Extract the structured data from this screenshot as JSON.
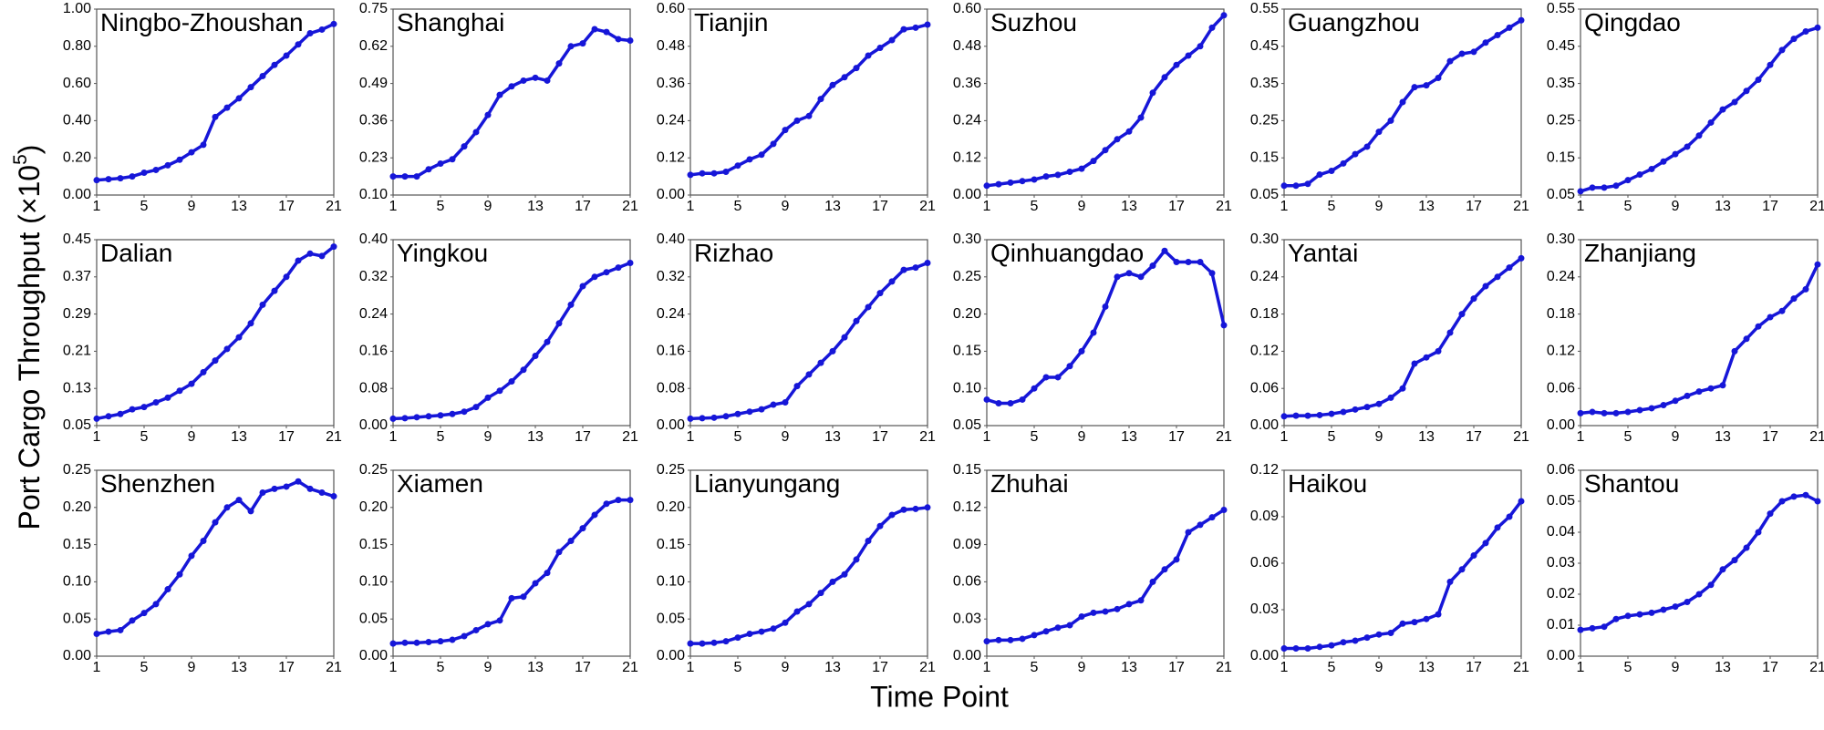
{
  "ylabel_parts": [
    "Port Cargo Throughput (×10",
    "5",
    ")"
  ],
  "xlabel": "Time Point",
  "chart_data": [
    {
      "type": "line",
      "title": "Ningbo-Zhoushan",
      "color": "#1616d8",
      "x": [
        1,
        2,
        3,
        4,
        5,
        6,
        7,
        8,
        9,
        10,
        11,
        12,
        13,
        14,
        15,
        16,
        17,
        18,
        19,
        20,
        21
      ],
      "xlim": [
        1,
        21
      ],
      "xticks": [
        1,
        5,
        9,
        13,
        17,
        21
      ],
      "ylim": [
        0,
        1.0
      ],
      "yticks": [
        {
          "value": 0,
          "label": "0.00"
        },
        {
          "value": 0.2,
          "label": "0.20"
        },
        {
          "value": 0.4,
          "label": "0.40"
        },
        {
          "value": 0.6,
          "label": "0.60"
        },
        {
          "value": 0.8,
          "label": "0.80"
        },
        {
          "value": 1.0,
          "label": "1.00"
        }
      ],
      "values": [
        0.08,
        0.085,
        0.09,
        0.1,
        0.12,
        0.135,
        0.16,
        0.19,
        0.23,
        0.27,
        0.42,
        0.47,
        0.52,
        0.58,
        0.64,
        0.7,
        0.75,
        0.81,
        0.87,
        0.89,
        0.92
      ]
    },
    {
      "type": "line",
      "title": "Shanghai",
      "color": "#1616d8",
      "x": [
        1,
        2,
        3,
        4,
        5,
        6,
        7,
        8,
        9,
        10,
        11,
        12,
        13,
        14,
        15,
        16,
        17,
        18,
        19,
        20,
        21
      ],
      "xlim": [
        1,
        21
      ],
      "xticks": [
        1,
        5,
        9,
        13,
        17,
        21
      ],
      "ylim": [
        0.1,
        0.75
      ],
      "yticks": [
        {
          "value": 0.1,
          "label": "0.10"
        },
        0.23,
        0.36,
        0.49,
        0.62,
        0.75
      ],
      "values": [
        0.165,
        0.165,
        0.165,
        0.19,
        0.21,
        0.225,
        0.27,
        0.32,
        0.38,
        0.45,
        0.48,
        0.5,
        0.51,
        0.5,
        0.56,
        0.62,
        0.63,
        0.68,
        0.67,
        0.645,
        0.64
      ]
    },
    {
      "type": "line",
      "title": "Tianjin",
      "color": "#1616d8",
      "x": [
        1,
        2,
        3,
        4,
        5,
        6,
        7,
        8,
        9,
        10,
        11,
        12,
        13,
        14,
        15,
        16,
        17,
        18,
        19,
        20,
        21
      ],
      "xlim": [
        1,
        21
      ],
      "xticks": [
        1,
        5,
        9,
        13,
        17,
        21
      ],
      "ylim": [
        0,
        0.6
      ],
      "yticks": [
        {
          "value": 0,
          "label": "0.00"
        },
        0.12,
        0.24,
        0.36,
        0.48,
        {
          "value": 0.6,
          "label": "0.60"
        }
      ],
      "values": [
        0.065,
        0.07,
        0.07,
        0.075,
        0.095,
        0.115,
        0.13,
        0.165,
        0.21,
        0.24,
        0.255,
        0.31,
        0.355,
        0.38,
        0.41,
        0.45,
        0.475,
        0.5,
        0.535,
        0.54,
        0.55
      ]
    },
    {
      "type": "line",
      "title": "Suzhou",
      "color": "#1616d8",
      "x": [
        1,
        2,
        3,
        4,
        5,
        6,
        7,
        8,
        9,
        10,
        11,
        12,
        13,
        14,
        15,
        16,
        17,
        18,
        19,
        20,
        21
      ],
      "xlim": [
        1,
        21
      ],
      "xticks": [
        1,
        5,
        9,
        13,
        17,
        21
      ],
      "ylim": [
        0,
        0.6
      ],
      "yticks": [
        {
          "value": 0,
          "label": "0.00"
        },
        0.12,
        0.24,
        0.36,
        0.48,
        {
          "value": 0.6,
          "label": "0.60"
        }
      ],
      "values": [
        0.03,
        0.035,
        0.04,
        0.045,
        0.05,
        0.06,
        0.065,
        0.075,
        0.085,
        0.11,
        0.145,
        0.18,
        0.205,
        0.25,
        0.33,
        0.38,
        0.42,
        0.45,
        0.48,
        0.54,
        0.58
      ]
    },
    {
      "type": "line",
      "title": "Guangzhou",
      "color": "#1616d8",
      "x": [
        1,
        2,
        3,
        4,
        5,
        6,
        7,
        8,
        9,
        10,
        11,
        12,
        13,
        14,
        15,
        16,
        17,
        18,
        19,
        20,
        21
      ],
      "xlim": [
        1,
        21
      ],
      "xticks": [
        1,
        5,
        9,
        13,
        17,
        21
      ],
      "ylim": [
        0.05,
        0.55
      ],
      "yticks": [
        0.05,
        0.15,
        0.25,
        0.35,
        0.45,
        0.55
      ],
      "values": [
        0.075,
        0.075,
        0.08,
        0.105,
        0.115,
        0.135,
        0.16,
        0.18,
        0.22,
        0.25,
        0.3,
        0.34,
        0.345,
        0.365,
        0.41,
        0.43,
        0.435,
        0.46,
        0.48,
        0.5,
        0.52
      ]
    },
    {
      "type": "line",
      "title": "Qingdao",
      "color": "#1616d8",
      "x": [
        1,
        2,
        3,
        4,
        5,
        6,
        7,
        8,
        9,
        10,
        11,
        12,
        13,
        14,
        15,
        16,
        17,
        18,
        19,
        20,
        21
      ],
      "xlim": [
        1,
        21
      ],
      "xticks": [
        1,
        5,
        9,
        13,
        17,
        21
      ],
      "ylim": [
        0.05,
        0.55
      ],
      "yticks": [
        0.05,
        0.15,
        0.25,
        0.35,
        0.45,
        0.55
      ],
      "values": [
        0.06,
        0.07,
        0.07,
        0.075,
        0.09,
        0.105,
        0.12,
        0.14,
        0.16,
        0.18,
        0.21,
        0.245,
        0.28,
        0.3,
        0.33,
        0.36,
        0.4,
        0.44,
        0.47,
        0.49,
        0.5
      ]
    },
    {
      "type": "line",
      "title": "Dalian",
      "color": "#1616d8",
      "x": [
        1,
        2,
        3,
        4,
        5,
        6,
        7,
        8,
        9,
        10,
        11,
        12,
        13,
        14,
        15,
        16,
        17,
        18,
        19,
        20,
        21
      ],
      "xlim": [
        1,
        21
      ],
      "xticks": [
        1,
        5,
        9,
        13,
        17,
        21
      ],
      "ylim": [
        0.05,
        0.45
      ],
      "yticks": [
        0.05,
        0.13,
        0.21,
        0.29,
        0.37,
        0.45
      ],
      "values": [
        0.065,
        0.07,
        0.075,
        0.085,
        0.09,
        0.1,
        0.11,
        0.125,
        0.14,
        0.165,
        0.19,
        0.215,
        0.24,
        0.27,
        0.31,
        0.34,
        0.37,
        0.405,
        0.42,
        0.415,
        0.435
      ]
    },
    {
      "type": "line",
      "title": "Yingkou",
      "color": "#1616d8",
      "x": [
        1,
        2,
        3,
        4,
        5,
        6,
        7,
        8,
        9,
        10,
        11,
        12,
        13,
        14,
        15,
        16,
        17,
        18,
        19,
        20,
        21
      ],
      "xlim": [
        1,
        21
      ],
      "xticks": [
        1,
        5,
        9,
        13,
        17,
        21
      ],
      "ylim": [
        0,
        0.4
      ],
      "yticks": [
        {
          "value": 0,
          "label": "0.00"
        },
        0.08,
        0.16,
        0.24,
        0.32,
        {
          "value": 0.4,
          "label": "0.40"
        }
      ],
      "values": [
        0.015,
        0.016,
        0.018,
        0.02,
        0.022,
        0.025,
        0.03,
        0.04,
        0.06,
        0.075,
        0.095,
        0.12,
        0.15,
        0.18,
        0.22,
        0.26,
        0.3,
        0.32,
        0.33,
        0.34,
        0.35
      ]
    },
    {
      "type": "line",
      "title": "Rizhao",
      "color": "#1616d8",
      "x": [
        1,
        2,
        3,
        4,
        5,
        6,
        7,
        8,
        9,
        10,
        11,
        12,
        13,
        14,
        15,
        16,
        17,
        18,
        19,
        20,
        21
      ],
      "xlim": [
        1,
        21
      ],
      "xticks": [
        1,
        5,
        9,
        13,
        17,
        21
      ],
      "ylim": [
        0,
        0.4
      ],
      "yticks": [
        {
          "value": 0,
          "label": "0.00"
        },
        0.08,
        0.16,
        0.24,
        0.32,
        {
          "value": 0.4,
          "label": "0.40"
        }
      ],
      "values": [
        0.015,
        0.016,
        0.017,
        0.02,
        0.025,
        0.03,
        0.035,
        0.045,
        0.05,
        0.085,
        0.11,
        0.135,
        0.16,
        0.19,
        0.225,
        0.255,
        0.285,
        0.31,
        0.335,
        0.34,
        0.35
      ]
    },
    {
      "type": "line",
      "title": "Qinhuangdao",
      "color": "#1616d8",
      "x": [
        1,
        2,
        3,
        4,
        5,
        6,
        7,
        8,
        9,
        10,
        11,
        12,
        13,
        14,
        15,
        16,
        17,
        18,
        19,
        20,
        21
      ],
      "xlim": [
        1,
        21
      ],
      "xticks": [
        1,
        5,
        9,
        13,
        17,
        21
      ],
      "ylim": [
        0.05,
        0.3
      ],
      "yticks": [
        0.05,
        {
          "value": 0.1,
          "label": "0.10"
        },
        0.15,
        {
          "value": 0.2,
          "label": "0.20"
        },
        0.25,
        {
          "value": 0.3,
          "label": "0.30"
        }
      ],
      "values": [
        0.085,
        0.08,
        0.08,
        0.085,
        0.1,
        0.115,
        0.115,
        0.13,
        0.15,
        0.175,
        0.21,
        0.25,
        0.255,
        0.25,
        0.265,
        0.285,
        0.27,
        0.27,
        0.27,
        0.255,
        0.185
      ]
    },
    {
      "type": "line",
      "title": "Yantai",
      "color": "#1616d8",
      "x": [
        1,
        2,
        3,
        4,
        5,
        6,
        7,
        8,
        9,
        10,
        11,
        12,
        13,
        14,
        15,
        16,
        17,
        18,
        19,
        20,
        21
      ],
      "xlim": [
        1,
        21
      ],
      "xticks": [
        1,
        5,
        9,
        13,
        17,
        21
      ],
      "ylim": [
        0,
        0.3
      ],
      "yticks": [
        {
          "value": 0,
          "label": "0.00"
        },
        0.06,
        0.12,
        0.18,
        0.24,
        {
          "value": 0.3,
          "label": "0.30"
        }
      ],
      "values": [
        0.015,
        0.016,
        0.016,
        0.017,
        0.019,
        0.022,
        0.026,
        0.03,
        0.035,
        0.045,
        0.06,
        0.1,
        0.11,
        0.12,
        0.15,
        0.18,
        0.205,
        0.225,
        0.24,
        0.255,
        0.27
      ]
    },
    {
      "type": "line",
      "title": "Zhanjiang",
      "color": "#1616d8",
      "x": [
        1,
        2,
        3,
        4,
        5,
        6,
        7,
        8,
        9,
        10,
        11,
        12,
        13,
        14,
        15,
        16,
        17,
        18,
        19,
        20,
        21
      ],
      "xlim": [
        1,
        21
      ],
      "xticks": [
        1,
        5,
        9,
        13,
        17,
        21
      ],
      "ylim": [
        0,
        0.3
      ],
      "yticks": [
        {
          "value": 0,
          "label": "0.00"
        },
        0.06,
        0.12,
        0.18,
        0.24,
        {
          "value": 0.3,
          "label": "0.30"
        }
      ],
      "values": [
        0.02,
        0.022,
        0.02,
        0.02,
        0.022,
        0.025,
        0.028,
        0.033,
        0.04,
        0.048,
        0.055,
        0.06,
        0.065,
        0.12,
        0.14,
        0.16,
        0.175,
        0.185,
        0.205,
        0.22,
        0.26
      ]
    },
    {
      "type": "line",
      "title": "Shenzhen",
      "color": "#1616d8",
      "x": [
        1,
        2,
        3,
        4,
        5,
        6,
        7,
        8,
        9,
        10,
        11,
        12,
        13,
        14,
        15,
        16,
        17,
        18,
        19,
        20,
        21
      ],
      "xlim": [
        1,
        21
      ],
      "xticks": [
        1,
        5,
        9,
        13,
        17,
        21
      ],
      "ylim": [
        0,
        0.25
      ],
      "yticks": [
        {
          "value": 0,
          "label": "0.00"
        },
        0.05,
        {
          "value": 0.1,
          "label": "0.10"
        },
        0.15,
        {
          "value": 0.2,
          "label": "0.20"
        },
        0.25
      ],
      "values": [
        0.03,
        0.033,
        0.035,
        0.048,
        0.058,
        0.07,
        0.09,
        0.11,
        0.135,
        0.155,
        0.18,
        0.2,
        0.21,
        0.195,
        0.22,
        0.225,
        0.228,
        0.235,
        0.225,
        0.22,
        0.215
      ]
    },
    {
      "type": "line",
      "title": "Xiamen",
      "color": "#1616d8",
      "x": [
        1,
        2,
        3,
        4,
        5,
        6,
        7,
        8,
        9,
        10,
        11,
        12,
        13,
        14,
        15,
        16,
        17,
        18,
        19,
        20,
        21
      ],
      "xlim": [
        1,
        21
      ],
      "xticks": [
        1,
        5,
        9,
        13,
        17,
        21
      ],
      "ylim": [
        0,
        0.25
      ],
      "yticks": [
        {
          "value": 0,
          "label": "0.00"
        },
        0.05,
        {
          "value": 0.1,
          "label": "0.10"
        },
        0.15,
        {
          "value": 0.2,
          "label": "0.20"
        },
        0.25
      ],
      "values": [
        0.017,
        0.018,
        0.018,
        0.019,
        0.02,
        0.022,
        0.027,
        0.035,
        0.043,
        0.048,
        0.078,
        0.08,
        0.098,
        0.112,
        0.14,
        0.155,
        0.172,
        0.19,
        0.205,
        0.21,
        0.21
      ]
    },
    {
      "type": "line",
      "title": "Lianyungang",
      "color": "#1616d8",
      "x": [
        1,
        2,
        3,
        4,
        5,
        6,
        7,
        8,
        9,
        10,
        11,
        12,
        13,
        14,
        15,
        16,
        17,
        18,
        19,
        20,
        21
      ],
      "xlim": [
        1,
        21
      ],
      "xticks": [
        1,
        5,
        9,
        13,
        17,
        21
      ],
      "ylim": [
        0,
        0.25
      ],
      "yticks": [
        {
          "value": 0,
          "label": "0.00"
        },
        0.05,
        {
          "value": 0.1,
          "label": "0.10"
        },
        0.15,
        {
          "value": 0.2,
          "label": "0.20"
        },
        0.25
      ],
      "values": [
        0.017,
        0.017,
        0.018,
        0.02,
        0.025,
        0.03,
        0.033,
        0.037,
        0.045,
        0.06,
        0.07,
        0.085,
        0.1,
        0.11,
        0.13,
        0.155,
        0.175,
        0.19,
        0.197,
        0.198,
        0.2
      ]
    },
    {
      "type": "line",
      "title": "Zhuhai",
      "color": "#1616d8",
      "x": [
        1,
        2,
        3,
        4,
        5,
        6,
        7,
        8,
        9,
        10,
        11,
        12,
        13,
        14,
        15,
        16,
        17,
        18,
        19,
        20,
        21
      ],
      "xlim": [
        1,
        21
      ],
      "xticks": [
        1,
        5,
        9,
        13,
        17,
        21
      ],
      "ylim": [
        0,
        0.15
      ],
      "yticks": [
        {
          "value": 0,
          "label": "0.00"
        },
        0.03,
        0.06,
        0.09,
        0.12,
        0.15
      ],
      "values": [
        0.012,
        0.013,
        0.013,
        0.014,
        0.017,
        0.02,
        0.023,
        0.025,
        0.032,
        0.035,
        0.036,
        0.038,
        0.042,
        0.045,
        0.06,
        0.07,
        0.078,
        0.1,
        0.106,
        0.112,
        0.118
      ]
    },
    {
      "type": "line",
      "title": "Haikou",
      "color": "#1616d8",
      "x": [
        1,
        2,
        3,
        4,
        5,
        6,
        7,
        8,
        9,
        10,
        11,
        12,
        13,
        14,
        15,
        16,
        17,
        18,
        19,
        20,
        21
      ],
      "xlim": [
        1,
        21
      ],
      "xticks": [
        1,
        5,
        9,
        13,
        17,
        21
      ],
      "ylim": [
        0,
        0.12
      ],
      "yticks": [
        {
          "value": 0,
          "label": "0.00"
        },
        0.03,
        0.06,
        0.09,
        0.12
      ],
      "values": [
        0.005,
        0.005,
        0.005,
        0.006,
        0.007,
        0.009,
        0.01,
        0.012,
        0.014,
        0.015,
        0.021,
        0.022,
        0.024,
        0.027,
        0.048,
        0.056,
        0.065,
        0.073,
        0.083,
        0.09,
        0.1
      ]
    },
    {
      "type": "line",
      "title": "Shantou",
      "color": "#1616d8",
      "x": [
        1,
        2,
        3,
        4,
        5,
        6,
        7,
        8,
        9,
        10,
        11,
        12,
        13,
        14,
        15,
        16,
        17,
        18,
        19,
        20,
        21
      ],
      "xlim": [
        1,
        21
      ],
      "xticks": [
        1,
        5,
        9,
        13,
        17,
        21
      ],
      "ylim": [
        0,
        0.06
      ],
      "yticks": [
        {
          "value": 0,
          "label": "0.00"
        },
        0.01,
        0.02,
        0.03,
        0.04,
        0.05,
        0.06
      ],
      "values": [
        0.0085,
        0.009,
        0.0095,
        0.012,
        0.013,
        0.0135,
        0.014,
        0.015,
        0.016,
        0.0175,
        0.02,
        0.023,
        0.028,
        0.031,
        0.035,
        0.04,
        0.046,
        0.05,
        0.0515,
        0.052,
        0.05
      ]
    }
  ]
}
